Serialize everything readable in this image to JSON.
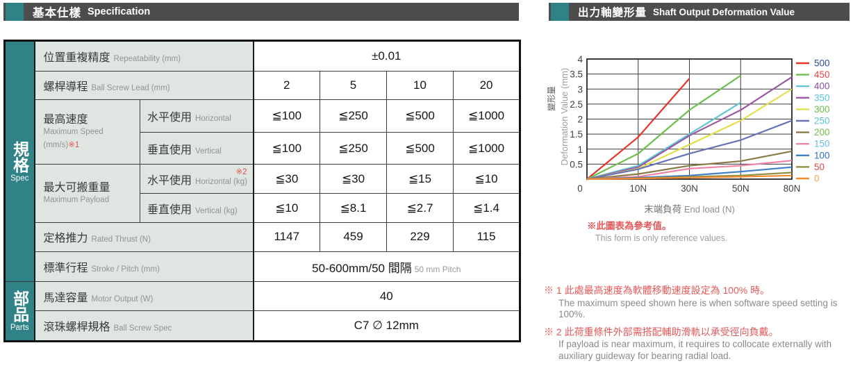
{
  "spec_section": {
    "header": {
      "zh": "基本仕樣",
      "en": "Specification"
    },
    "groups": {
      "spec": {
        "zh": "規格",
        "en": "Spec"
      },
      "parts": {
        "zh": "部品",
        "en": "Parts"
      }
    },
    "rows": {
      "repeatability": {
        "zh": "位置重複精度",
        "en": "Repeatability (mm)",
        "value": "±0.01"
      },
      "lead": {
        "zh": "螺桿導程",
        "en": "Ball Screw Lead (mm)",
        "values": [
          "2",
          "5",
          "10",
          "20"
        ]
      },
      "max_speed": {
        "zh": "最高速度",
        "en": "Maximum Speed",
        "unit": "(mm/s)",
        "mark": "※1",
        "horizontal": {
          "zh": "水平使用",
          "en": "Horizontal",
          "values": [
            "≦100",
            "≦250",
            "≦500",
            "≦1000"
          ]
        },
        "vertical": {
          "zh": "垂直使用",
          "en": "Vertical",
          "values": [
            "≦100",
            "≦250",
            "≦500",
            "≦1000"
          ]
        }
      },
      "max_payload": {
        "zh": "最大可搬重量",
        "en": "Maximum Payload",
        "horizontal": {
          "zh": "水平使用",
          "en": "Horizontal (kg)",
          "mark": "※2",
          "values": [
            "≦30",
            "≦30",
            "≦15",
            "≦10"
          ]
        },
        "vertical": {
          "zh": "垂直使用",
          "en": "Vertical (kg)",
          "values": [
            "≦10",
            "≦8.1",
            "≦2.7",
            "≦1.4"
          ]
        }
      },
      "rated_thrust": {
        "zh": "定格推力",
        "en": "Rated Thrust (N)",
        "values": [
          "1147",
          "459",
          "229",
          "115"
        ]
      },
      "stroke": {
        "zh": "標準行程",
        "en": "Stroke / Pitch (mm)",
        "value": "50-600mm/50 間隔",
        "value_sub": "50 mm Pitch"
      },
      "motor": {
        "zh": "馬達容量",
        "en": "Motor Output (W)",
        "value": "40"
      },
      "ball_screw": {
        "zh": "滾珠螺桿規格",
        "en": "Ball Screw Spec",
        "value": "C7 ∅ 12mm"
      }
    }
  },
  "chart_section": {
    "header": {
      "zh": "出力軸變形量",
      "en": "Shaft Output Deformation Value"
    },
    "xlabel": {
      "zh": "末端負荷",
      "en": "End load (N)"
    },
    "note": {
      "zh": "※此圖表為參考值。",
      "en": "This form is only reference values."
    }
  },
  "footnotes": [
    {
      "zh": "※ 1 此處最高速度為軟體移動速度設定為 100% 時。",
      "en": "The maximum speed shown here is when software speed setting is 100%."
    },
    {
      "zh": "※ 2 此荷重條件外部需搭配輔助滑軌以承受徑向負戴。",
      "en": "If payload is near maximum, it requires to collocate externally with auxiliary guideway for bearing radial load."
    }
  ],
  "colors": {
    "teal_accent": "#2f8386",
    "header_bar": "#4d4d4d",
    "label_bg": "#dfe5e1",
    "note_red": "#e45a5a",
    "note_gray": "#8a8a8a"
  },
  "chart_data": {
    "type": "line",
    "title": "出力軸變形量 Shaft Output Deformation Value",
    "xlabel": "末端負荷 End load (N)",
    "ylabel_zh": "變形量",
    "ylabel_en": "Deformation Value (mm)",
    "x_ticks": [
      "0",
      "10N",
      "30N",
      "50N",
      "80N"
    ],
    "x_values": [
      0,
      10,
      30,
      50,
      80
    ],
    "ylim": [
      0,
      4
    ],
    "y_ticks": [
      0,
      0.5,
      1,
      1.5,
      2,
      2.5,
      3,
      3.5,
      4
    ],
    "grid": true,
    "legend_position": "right",
    "legend_title": "stroke (mm)",
    "series": [
      {
        "name": "500",
        "color": "#e63329",
        "label_color": "#2b4fa3",
        "values": [
          0,
          1.4,
          3.35,
          null,
          null
        ]
      },
      {
        "name": "450",
        "color": "#6cbf4c",
        "label_color": "#e04545",
        "values": [
          0,
          0.85,
          2.3,
          3.45,
          null
        ]
      },
      {
        "name": "400",
        "color": "#5fc7d4",
        "label_color": "#8a4fa0",
        "values": [
          0,
          0.45,
          1.5,
          2.55,
          null
        ]
      },
      {
        "name": "350",
        "color": "#9c57a5",
        "label_color": "#57c5d8",
        "values": [
          0,
          0.4,
          1.45,
          2.3,
          3.4
        ]
      },
      {
        "name": "300",
        "color": "#e2df4a",
        "label_color": "#6cbf4c",
        "values": [
          0,
          0.35,
          1.15,
          1.95,
          3.0
        ]
      },
      {
        "name": "250",
        "color": "#6672b8",
        "label_color": "#57c5d8",
        "values": [
          0,
          0.33,
          0.85,
          1.3,
          1.95
        ]
      },
      {
        "name": "200",
        "color": "#8a7a45",
        "label_color": "#6cbf4c",
        "values": [
          0,
          0.17,
          0.45,
          0.6,
          0.93
        ]
      },
      {
        "name": "150",
        "color": "#f083a2",
        "label_color": "#6db8e8",
        "values": [
          0,
          0.08,
          0.35,
          0.45,
          0.62
        ]
      },
      {
        "name": "100",
        "color": "#3f7fc4",
        "label_color": "#2b6fc0",
        "values": [
          0,
          0.05,
          0.12,
          0.25,
          0.4
        ]
      },
      {
        "name": "50",
        "color": "#8f8f3d",
        "label_color": "#e04545",
        "values": [
          0,
          0.03,
          0.08,
          0.12,
          0.22
        ]
      },
      {
        "name": "0",
        "color": "#f28a33",
        "label_color": "#f2a04d",
        "values": [
          0,
          0.02,
          0.05,
          0.08,
          0.12
        ]
      }
    ]
  }
}
